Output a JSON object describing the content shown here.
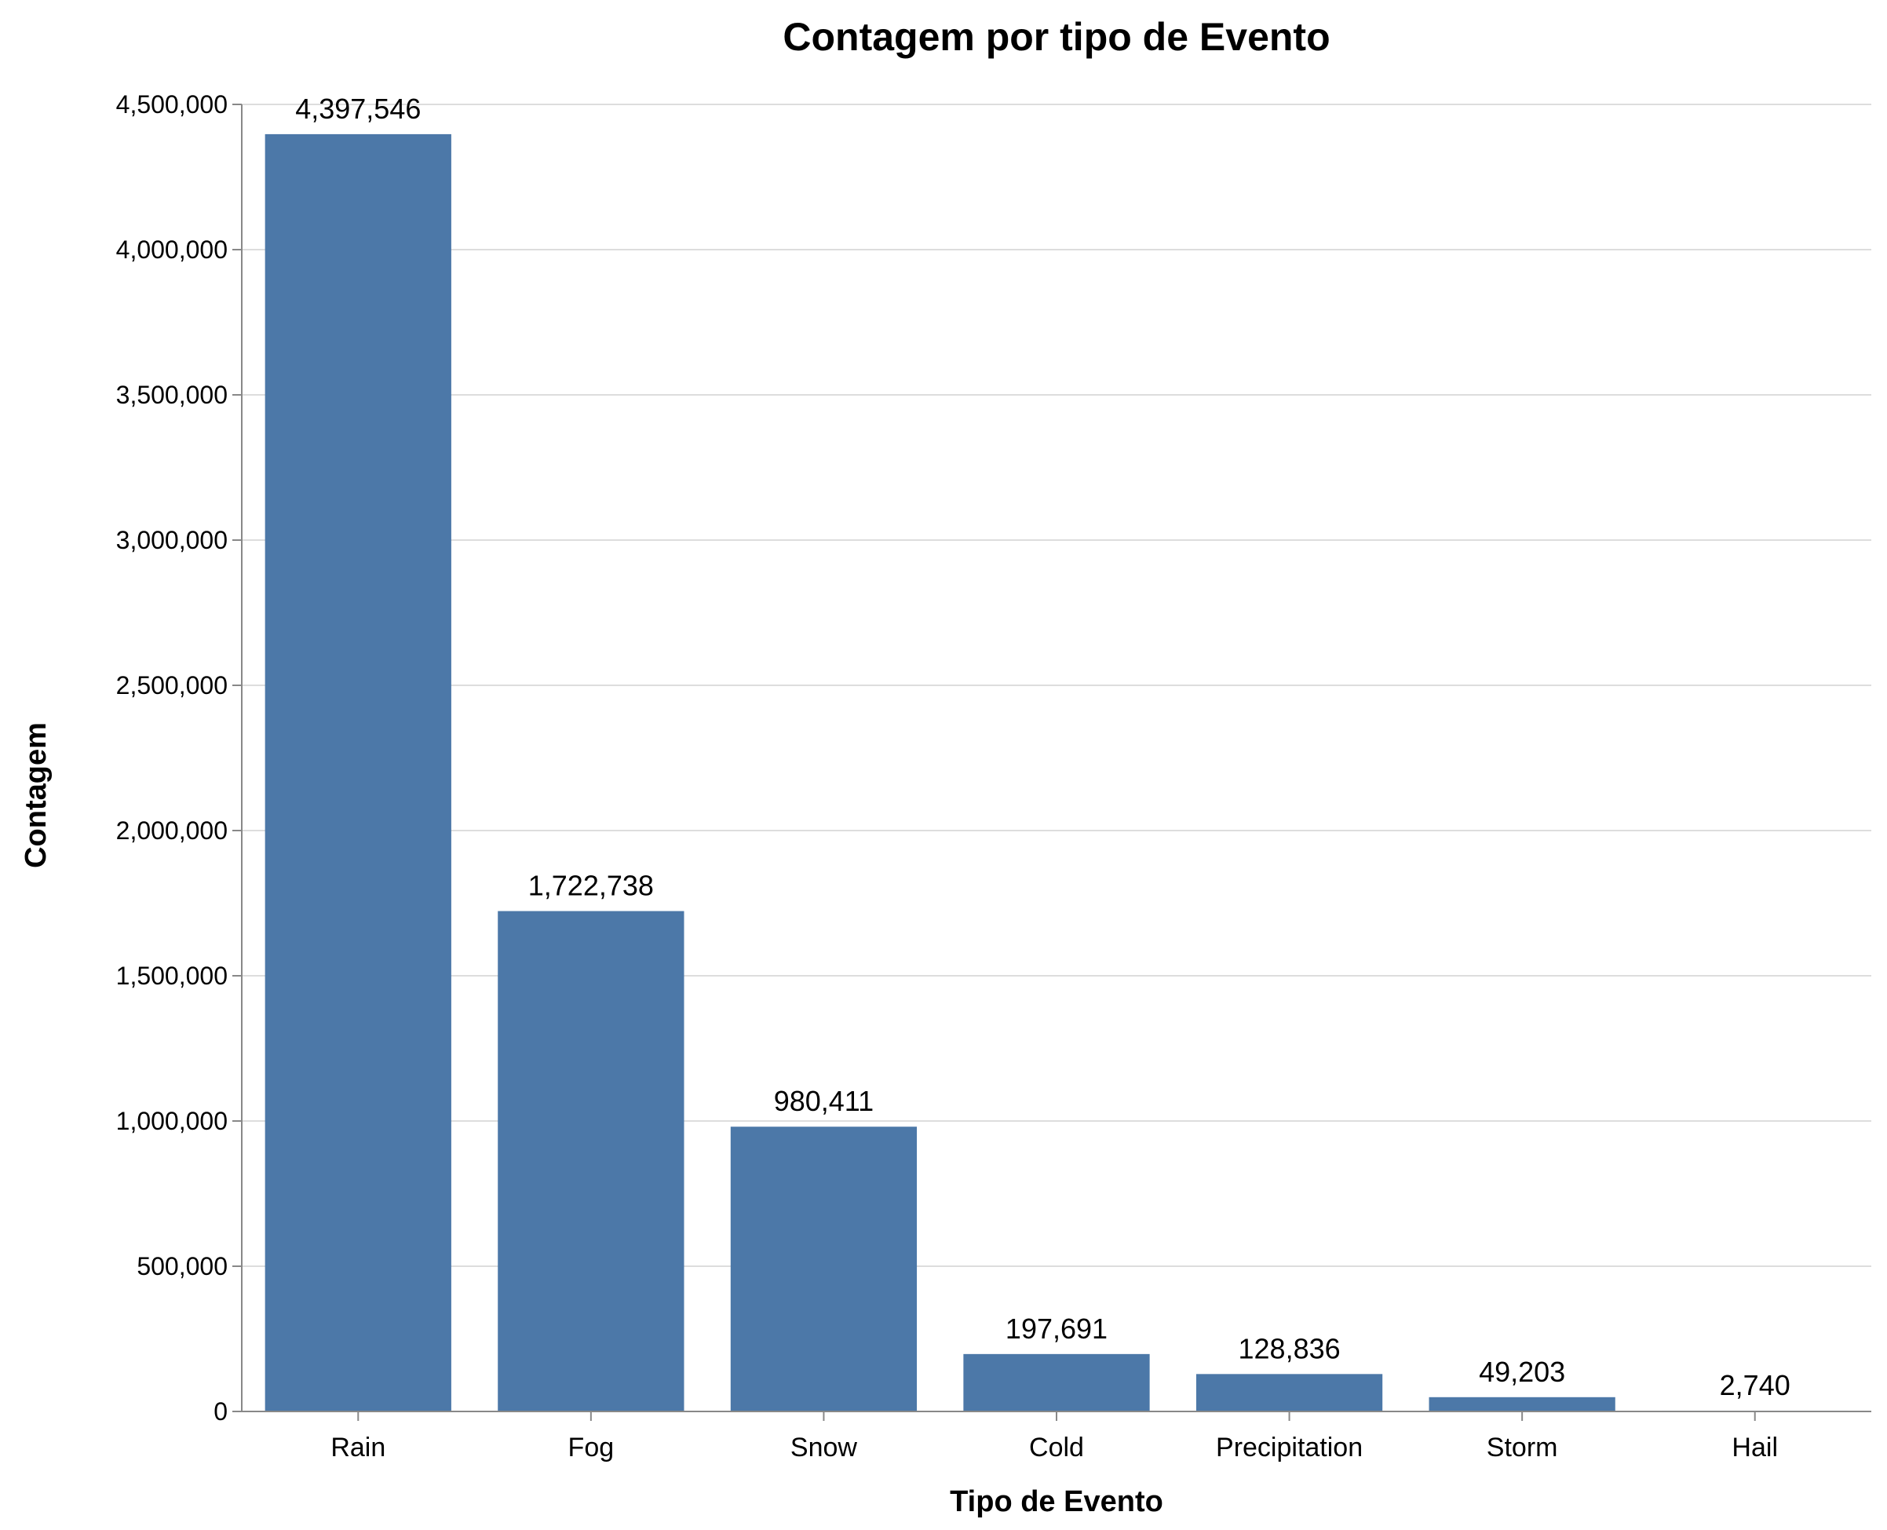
{
  "chart_data": {
    "type": "bar",
    "title": "Contagem por tipo de Evento",
    "xlabel": "Tipo de Evento",
    "ylabel": "Contagem",
    "categories": [
      "Rain",
      "Fog",
      "Snow",
      "Cold",
      "Precipitation",
      "Storm",
      "Hail"
    ],
    "values": [
      4397546,
      1722738,
      980411,
      197691,
      128836,
      49203,
      2740
    ],
    "data_labels": [
      "4,397,546",
      "1,722,738",
      "980,411",
      "197,691",
      "128,836",
      "49,203",
      "2,740"
    ],
    "ylim": [
      0,
      4500000
    ],
    "yticks": [
      0,
      500000,
      1000000,
      1500000,
      2000000,
      2500000,
      3000000,
      3500000,
      4000000,
      4500000
    ],
    "ytick_labels": [
      "0",
      "500,000",
      "1,000,000",
      "1,500,000",
      "2,000,000",
      "2,500,000",
      "3,000,000",
      "3,500,000",
      "4,000,000",
      "4,500,000"
    ],
    "grid": true,
    "colors": {
      "bar": "#4c78a8",
      "grid": "#dddddd",
      "axis": "#888888"
    }
  }
}
